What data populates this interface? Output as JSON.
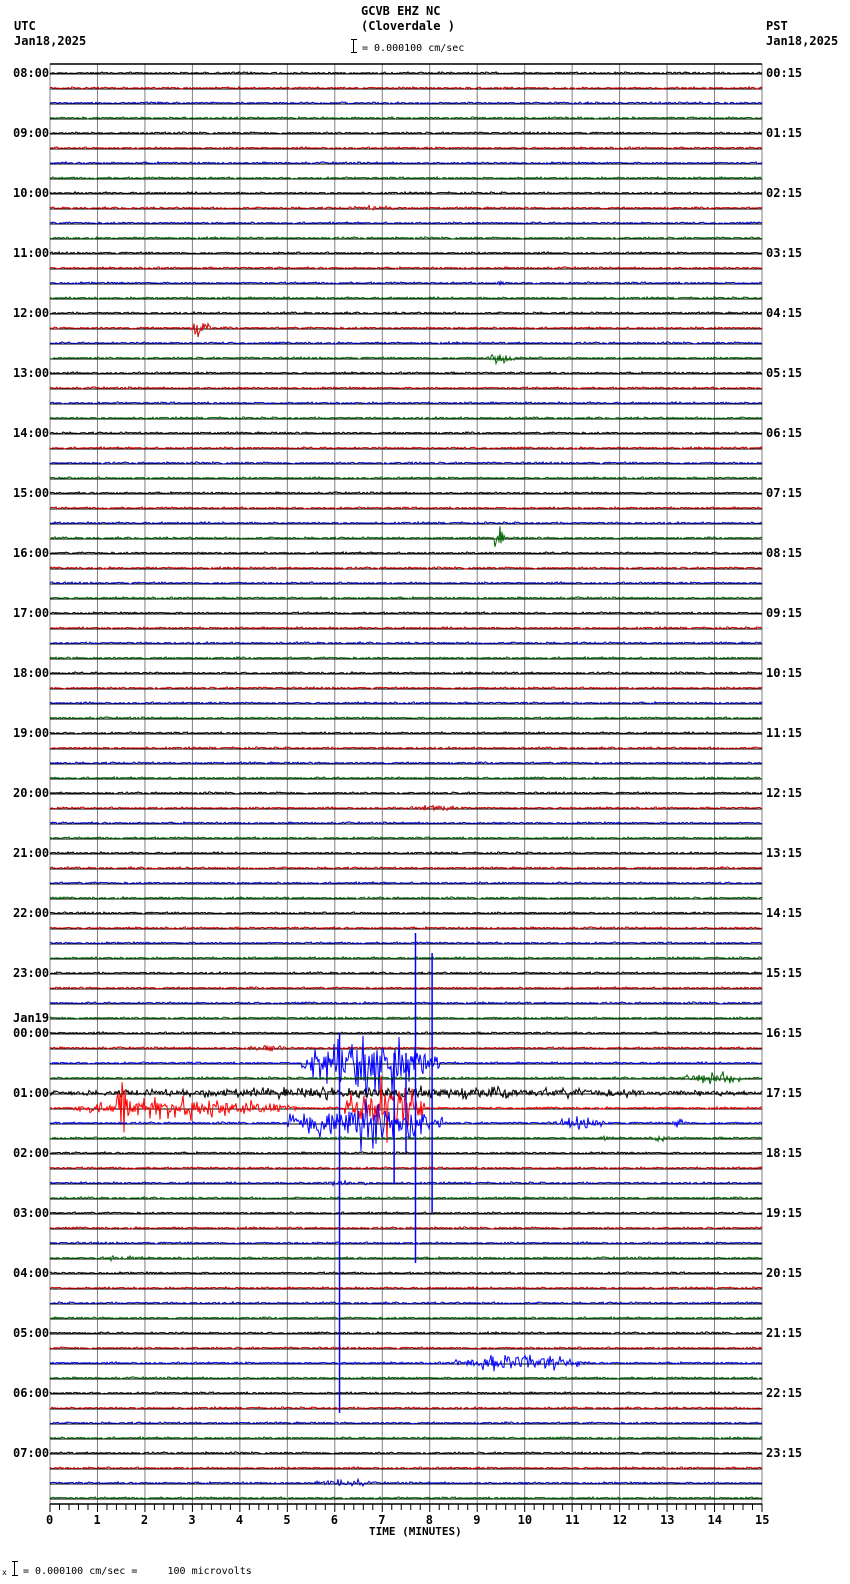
{
  "header": {
    "station": "GCVB EHZ NC",
    "location": "(Cloverdale )",
    "left_tz": "UTC",
    "left_date": "Jan18,2025",
    "right_tz": "PST",
    "right_date": "Jan18,2025",
    "scale_text": "= 0.000100 cm/sec"
  },
  "footer": {
    "prefix": "x",
    "scale_text": "= 0.000100 cm/sec =     100 microvolts"
  },
  "colors": {
    "trace_cycle": [
      "#000000",
      "#cc0000",
      "#0000cc",
      "#006600"
    ],
    "trace_red": "#ff0000",
    "trace_blue": "#0000ff",
    "grid": "#808080",
    "baseline": "#000000"
  },
  "chart_data": {
    "type": "line",
    "title": "GCVB EHZ NC (Cloverdale )",
    "xlabel": "TIME (MINUTES)",
    "ylabel": "",
    "xlim": [
      0,
      15
    ],
    "x_ticks": [
      "0",
      "1",
      "2",
      "3",
      "4",
      "5",
      "6",
      "7",
      "8",
      "9",
      "10",
      "11",
      "12",
      "13",
      "14",
      "15"
    ],
    "grid": true,
    "rows_per_hour": 4,
    "minutes_per_row": 15,
    "left_labels": [
      {
        "row": 0,
        "text": "08:00"
      },
      {
        "row": 4,
        "text": "09:00"
      },
      {
        "row": 8,
        "text": "10:00"
      },
      {
        "row": 12,
        "text": "11:00"
      },
      {
        "row": 16,
        "text": "12:00"
      },
      {
        "row": 20,
        "text": "13:00"
      },
      {
        "row": 24,
        "text": "14:00"
      },
      {
        "row": 28,
        "text": "15:00"
      },
      {
        "row": 32,
        "text": "16:00"
      },
      {
        "row": 36,
        "text": "17:00"
      },
      {
        "row": 40,
        "text": "18:00"
      },
      {
        "row": 44,
        "text": "19:00"
      },
      {
        "row": 48,
        "text": "20:00"
      },
      {
        "row": 52,
        "text": "21:00"
      },
      {
        "row": 56,
        "text": "22:00"
      },
      {
        "row": 60,
        "text": "23:00"
      },
      {
        "row": 64,
        "text": "00:00",
        "date": "Jan19"
      },
      {
        "row": 68,
        "text": "01:00"
      },
      {
        "row": 72,
        "text": "02:00"
      },
      {
        "row": 76,
        "text": "03:00"
      },
      {
        "row": 80,
        "text": "04:00"
      },
      {
        "row": 84,
        "text": "05:00"
      },
      {
        "row": 88,
        "text": "06:00"
      },
      {
        "row": 92,
        "text": "07:00"
      }
    ],
    "right_labels": [
      {
        "row": 0,
        "text": "00:15"
      },
      {
        "row": 4,
        "text": "01:15"
      },
      {
        "row": 8,
        "text": "02:15"
      },
      {
        "row": 12,
        "text": "03:15"
      },
      {
        "row": 16,
        "text": "04:15"
      },
      {
        "row": 20,
        "text": "05:15"
      },
      {
        "row": 24,
        "text": "06:15"
      },
      {
        "row": 28,
        "text": "07:15"
      },
      {
        "row": 32,
        "text": "08:15"
      },
      {
        "row": 36,
        "text": "09:15"
      },
      {
        "row": 40,
        "text": "10:15"
      },
      {
        "row": 44,
        "text": "11:15"
      },
      {
        "row": 48,
        "text": "12:15"
      },
      {
        "row": 52,
        "text": "13:15"
      },
      {
        "row": 56,
        "text": "14:15"
      },
      {
        "row": 60,
        "text": "15:15"
      },
      {
        "row": 64,
        "text": "16:15"
      },
      {
        "row": 68,
        "text": "17:15"
      },
      {
        "row": 72,
        "text": "18:15"
      },
      {
        "row": 76,
        "text": "19:15"
      },
      {
        "row": 80,
        "text": "20:15"
      },
      {
        "row": 84,
        "text": "21:15"
      },
      {
        "row": 88,
        "text": "22:15"
      },
      {
        "row": 92,
        "text": "23:15"
      }
    ],
    "total_rows": 96,
    "events": [
      {
        "row": 5,
        "start_min": 12.3,
        "end_min": 12.5,
        "amp": 2
      },
      {
        "row": 6,
        "start_min": 0.2,
        "end_min": 0.3,
        "amp": 3
      },
      {
        "row": 9,
        "start_min": 6.1,
        "end_min": 7.6,
        "amp": 3
      },
      {
        "row": 14,
        "start_min": 9.4,
        "end_min": 9.6,
        "amp": 4
      },
      {
        "row": 17,
        "start_min": 2.95,
        "end_min": 3.4,
        "amp": 12
      },
      {
        "row": 19,
        "start_min": 9.2,
        "end_min": 9.8,
        "amp": 8
      },
      {
        "row": 26,
        "start_min": 7.5,
        "end_min": 7.7,
        "amp": 5
      },
      {
        "row": 31,
        "start_min": 9.3,
        "end_min": 9.6,
        "amp": 14
      },
      {
        "row": 49,
        "start_min": 7.5,
        "end_min": 8.7,
        "amp": 4
      },
      {
        "row": 65,
        "start_min": 3.9,
        "end_min": 5.2,
        "amp": 4
      },
      {
        "row": 66,
        "start_min": 5.3,
        "end_min": 8.2,
        "amp": 40
      },
      {
        "row": 67,
        "start_min": 13.3,
        "end_min": 14.7,
        "amp": 8
      },
      {
        "row": 68,
        "start_min": 0.0,
        "end_min": 15.0,
        "amp": 8
      },
      {
        "row": 69,
        "start_min": 0.5,
        "end_min": 5.2,
        "amp": 14
      },
      {
        "row": 69,
        "start_min": 1.4,
        "end_min": 1.6,
        "amp": 90
      },
      {
        "row": 69,
        "start_min": 6.2,
        "end_min": 7.9,
        "amp": 40
      },
      {
        "row": 70,
        "start_min": 5.0,
        "end_min": 8.3,
        "amp": 30
      },
      {
        "row": 70,
        "start_min": 10.6,
        "end_min": 11.8,
        "amp": 8
      },
      {
        "row": 70,
        "start_min": 13.1,
        "end_min": 13.4,
        "amp": 8
      },
      {
        "row": 71,
        "start_min": 11.6,
        "end_min": 11.8,
        "amp": 5
      },
      {
        "row": 71,
        "start_min": 12.7,
        "end_min": 13.0,
        "amp": 5
      },
      {
        "row": 74,
        "start_min": 5.3,
        "end_min": 7.0,
        "amp": 3
      },
      {
        "row": 79,
        "start_min": 1.0,
        "end_min": 2.0,
        "amp": 4
      },
      {
        "row": 86,
        "start_min": 8.5,
        "end_min": 11.3,
        "amp": 12
      },
      {
        "row": 94,
        "start_min": 5.6,
        "end_min": 6.8,
        "amp": 6
      }
    ],
    "spikes": [
      {
        "from_row": 66,
        "min": 6.1,
        "up": 30,
        "down": 350
      },
      {
        "from_row": 66,
        "min": 7.7,
        "up": 130,
        "down": 200
      },
      {
        "from_row": 66,
        "min": 8.05,
        "up": 110,
        "down": 150
      },
      {
        "from_row": 66,
        "min": 7.25,
        "up": 10,
        "down": 120
      },
      {
        "from_row": 66,
        "min": 7.5,
        "up": 10,
        "down": 90
      }
    ]
  }
}
